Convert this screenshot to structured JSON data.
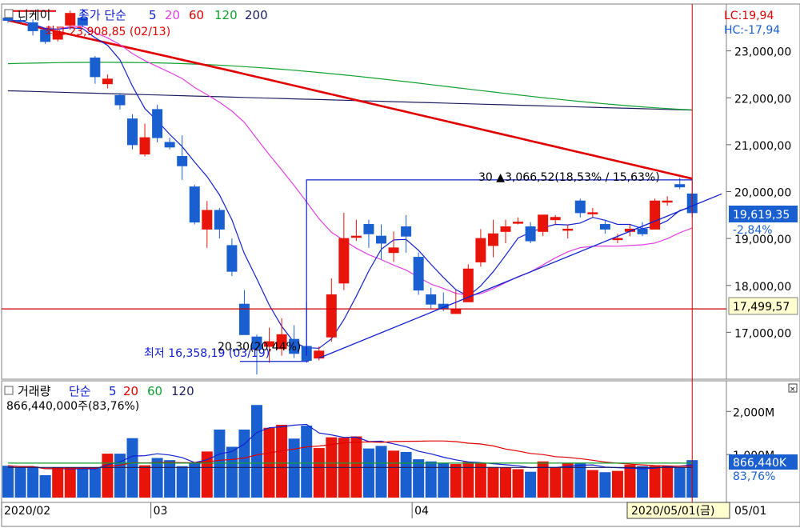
{
  "legend_price": {
    "name": "니케이",
    "ma_label": "종가 단순",
    "ma_periods": [
      {
        "label": "5",
        "color": "#1020d0"
      },
      {
        "label": "20",
        "color": "#e040e0"
      },
      {
        "label": "60",
        "color": "#e00000"
      },
      {
        "label": "120",
        "color": "#10a030"
      },
      {
        "label": "200",
        "color": "#202060"
      }
    ]
  },
  "legend_volume": {
    "name": "거래량",
    "ma_label": "단순",
    "ma_periods": [
      {
        "label": "5",
        "color": "#1020d0"
      },
      {
        "label": "20",
        "color": "#e00000"
      },
      {
        "label": "60",
        "color": "#10a030"
      },
      {
        "label": "120",
        "color": "#202060"
      }
    ],
    "current_text": "866,440,000주(83,76%)"
  },
  "corner_info": {
    "lc": "LC:19,94",
    "hc": "HC:-17,94"
  },
  "price_axis_labels": [
    "23,000,00",
    "22,000,00",
    "21,000,00",
    "20,000,00",
    "19,000,00",
    "18,000,00",
    "17,000,00"
  ],
  "price_axis_values": [
    23000,
    22000,
    21000,
    20000,
    19000,
    18000,
    17000
  ],
  "volume_axis_labels": [
    "2,000M",
    "1,000M"
  ],
  "volume_axis_values": [
    2000,
    1000
  ],
  "date_labels": [
    "2020/02",
    "03",
    "04"
  ],
  "date_label_index": [
    0,
    12,
    33
  ],
  "current_date": "2020/05/01(금)",
  "current_date_right": "05/01",
  "price_badge": {
    "value": "19,619,35",
    "change": "-2,84%"
  },
  "line_badge": {
    "value": "17,499,57",
    "price": 17499.57
  },
  "volume_badge": {
    "value": "866,440K",
    "percent": "83,76%"
  },
  "annotations": {
    "high": "최고 23,908,85 (02/13)",
    "low": "최저 16,358,19 (03/19)",
    "measure": "30 ▲3,066,52(18,53% / 15,63%)",
    "measure_small": "20,30(20,44%)"
  },
  "colors": {
    "up": "#e8140a",
    "down": "#1a5fd0",
    "background": "#ffffff",
    "panel_border": "#808080",
    "hline": "#cc0000"
  },
  "chart_data": {
    "type": "candlestick",
    "ylim": [
      16000,
      24000
    ],
    "volume_ylim": [
      0,
      2600
    ],
    "candles": [
      {
        "o": 23700,
        "h": 23750,
        "l": 23600,
        "c": 23650,
        "v": 740
      },
      {
        "o": 23650,
        "h": 23700,
        "l": 23590,
        "c": 23630,
        "v": 700
      },
      {
        "o": 23600,
        "h": 23680,
        "l": 23330,
        "c": 23430,
        "v": 720
      },
      {
        "o": 23450,
        "h": 23460,
        "l": 23150,
        "c": 23200,
        "v": 520
      },
      {
        "o": 23250,
        "h": 23500,
        "l": 23200,
        "c": 23400,
        "v": 700
      },
      {
        "o": 23550,
        "h": 23860,
        "l": 23450,
        "c": 23800,
        "v": 700
      },
      {
        "o": 23700,
        "h": 23900,
        "l": 23500,
        "c": 23550,
        "v": 700
      },
      {
        "o": 22850,
        "h": 22890,
        "l": 22300,
        "c": 22450,
        "v": 700
      },
      {
        "o": 22300,
        "h": 22500,
        "l": 22200,
        "c": 22400,
        "v": 1020
      },
      {
        "o": 22050,
        "h": 22100,
        "l": 21750,
        "c": 21850,
        "v": 1020
      },
      {
        "o": 21550,
        "h": 21650,
        "l": 20900,
        "c": 21000,
        "v": 1380
      },
      {
        "o": 20800,
        "h": 21450,
        "l": 20750,
        "c": 21150,
        "v": 750
      },
      {
        "o": 21750,
        "h": 21850,
        "l": 21050,
        "c": 21150,
        "v": 920
      },
      {
        "o": 21050,
        "h": 21150,
        "l": 20900,
        "c": 20950,
        "v": 870
      },
      {
        "o": 20750,
        "h": 21200,
        "l": 20250,
        "c": 20550,
        "v": 730
      },
      {
        "o": 20100,
        "h": 20150,
        "l": 19300,
        "c": 19350,
        "v": 800
      },
      {
        "o": 19200,
        "h": 19800,
        "l": 18800,
        "c": 19600,
        "v": 1070
      },
      {
        "o": 19600,
        "h": 19650,
        "l": 19000,
        "c": 19200,
        "v": 1580
      },
      {
        "o": 18850,
        "h": 19000,
        "l": 18200,
        "c": 18300,
        "v": 1180
      },
      {
        "o": 17600,
        "h": 17900,
        "l": 16950,
        "c": 16950,
        "v": 1580
      },
      {
        "o": 16900,
        "h": 16950,
        "l": 16100,
        "c": 16650,
        "v": 2150
      },
      {
        "o": 16700,
        "h": 17100,
        "l": 16350,
        "c": 16800,
        "v": 1620
      },
      {
        "o": 16650,
        "h": 17300,
        "l": 16500,
        "c": 16950,
        "v": 1690
      },
      {
        "o": 16850,
        "h": 17150,
        "l": 16450,
        "c": 16550,
        "v": 1370
      },
      {
        "o": 16700,
        "h": 17650,
        "l": 16350,
        "c": 16400,
        "v": 1670
      },
      {
        "o": 16450,
        "h": 16700,
        "l": 16400,
        "c": 16600,
        "v": 1150
      },
      {
        "o": 16900,
        "h": 18150,
        "l": 16800,
        "c": 17800,
        "v": 1400
      },
      {
        "o": 18050,
        "h": 19550,
        "l": 17900,
        "c": 19000,
        "v": 1390
      },
      {
        "o": 19050,
        "h": 19400,
        "l": 18950,
        "c": 19050,
        "v": 1420
      },
      {
        "o": 19300,
        "h": 19400,
        "l": 18800,
        "c": 19100,
        "v": 1140
      },
      {
        "o": 19050,
        "h": 19300,
        "l": 18550,
        "c": 18900,
        "v": 1200
      },
      {
        "o": 18700,
        "h": 19150,
        "l": 18500,
        "c": 18800,
        "v": 1090
      },
      {
        "o": 19250,
        "h": 19500,
        "l": 18700,
        "c": 19050,
        "v": 1060
      },
      {
        "o": 18600,
        "h": 18700,
        "l": 17800,
        "c": 17900,
        "v": 890
      },
      {
        "o": 17800,
        "h": 17950,
        "l": 17500,
        "c": 17600,
        "v": 840
      },
      {
        "o": 17600,
        "h": 17850,
        "l": 17450,
        "c": 17500,
        "v": 810
      },
      {
        "o": 17400,
        "h": 17900,
        "l": 17400,
        "c": 17500,
        "v": 780
      },
      {
        "o": 17650,
        "h": 18450,
        "l": 17650,
        "c": 18350,
        "v": 830
      },
      {
        "o": 18500,
        "h": 19200,
        "l": 18400,
        "c": 19000,
        "v": 800
      },
      {
        "o": 18850,
        "h": 19400,
        "l": 18600,
        "c": 19100,
        "v": 710
      },
      {
        "o": 19150,
        "h": 19400,
        "l": 18900,
        "c": 19250,
        "v": 700
      },
      {
        "o": 19350,
        "h": 19450,
        "l": 19300,
        "c": 19350,
        "v": 660
      },
      {
        "o": 19250,
        "h": 19350,
        "l": 18900,
        "c": 18950,
        "v": 600
      },
      {
        "o": 19150,
        "h": 19500,
        "l": 19050,
        "c": 19500,
        "v": 840
      },
      {
        "o": 19400,
        "h": 19500,
        "l": 19300,
        "c": 19450,
        "v": 700
      },
      {
        "o": 19200,
        "h": 19300,
        "l": 19000,
        "c": 19200,
        "v": 810
      },
      {
        "o": 19800,
        "h": 19850,
        "l": 19450,
        "c": 19550,
        "v": 810
      },
      {
        "o": 19550,
        "h": 19650,
        "l": 19450,
        "c": 19550,
        "v": 640
      },
      {
        "o": 19300,
        "h": 19400,
        "l": 19100,
        "c": 19200,
        "v": 590
      },
      {
        "o": 19000,
        "h": 19100,
        "l": 18900,
        "c": 19000,
        "v": 620
      },
      {
        "o": 19150,
        "h": 19300,
        "l": 19050,
        "c": 19200,
        "v": 760
      },
      {
        "o": 19200,
        "h": 19350,
        "l": 19050,
        "c": 19100,
        "v": 730
      },
      {
        "o": 19200,
        "h": 19850,
        "l": 19200,
        "c": 19800,
        "v": 730
      },
      {
        "o": 19800,
        "h": 19900,
        "l": 19700,
        "c": 19800,
        "v": 740
      },
      {
        "o": 20150,
        "h": 20300,
        "l": 20050,
        "c": 20100,
        "v": 700
      },
      {
        "o": 19950,
        "h": 20250,
        "l": 19450,
        "c": 19550,
        "v": 870
      }
    ]
  }
}
